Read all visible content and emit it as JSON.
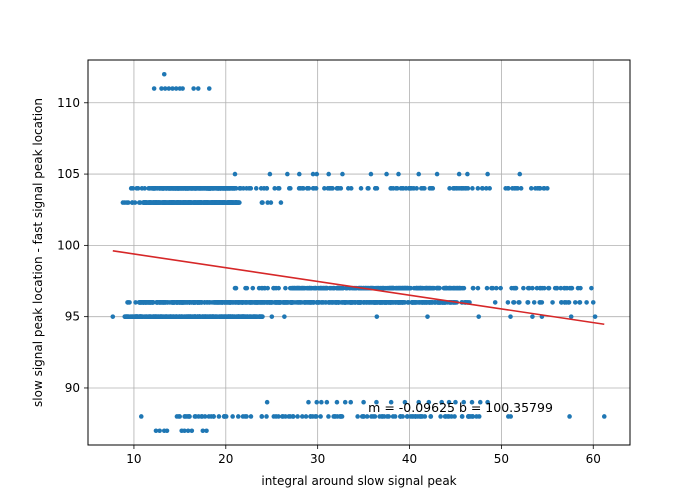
{
  "chart_data": {
    "type": "scatter",
    "xlabel": "integral around slow signal peak",
    "ylabel": "slow signal peak location - fast signal peak location",
    "xlim": [
      5,
      64
    ],
    "ylim": [
      86,
      113
    ],
    "x_ticks": [
      10,
      20,
      30,
      40,
      50,
      60
    ],
    "y_ticks": [
      90,
      95,
      100,
      105,
      110
    ],
    "grid": true,
    "point_color": "#1f77b4",
    "fit_line_color": "#d62728",
    "fit_line": {
      "slope": -0.09625,
      "intercept": 100.35799,
      "x_range": [
        7.7,
        61.2
      ]
    },
    "annotation": {
      "text": "m = -0.09625 b = 100.35799",
      "x": 35.5,
      "y": 88.3
    },
    "clusters": [
      {
        "y": 112,
        "x_points": [
          13.3
        ]
      },
      {
        "y": 111,
        "x_points": [
          12.2,
          13.0,
          13.4,
          13.8,
          14.2,
          14.6,
          15.0,
          15.3,
          16.5,
          17.0,
          18.2
        ]
      },
      {
        "y": 105,
        "x_points": [
          21.0,
          24.8,
          26.7,
          28.0,
          29.5,
          29.9,
          31.2,
          32.7,
          35.8,
          37.5,
          38.8,
          41.0,
          43.0,
          45.4,
          46.3,
          48.5,
          52.0
        ]
      },
      {
        "y": 104,
        "x_range": [
          9.7,
          55.0
        ],
        "dense_range": [
          12.0,
          21.0
        ],
        "dense_count": 260,
        "sparse_count": 150
      },
      {
        "y": 103,
        "x_range": [
          8.8,
          26.0
        ],
        "dense_range": [
          11.0,
          21.5
        ],
        "dense_count": 300,
        "sparse_count": 40
      },
      {
        "y": 97,
        "x_range": [
          21.0,
          59.8
        ],
        "dense_range": [
          27.0,
          46.0
        ],
        "dense_count": 240,
        "sparse_count": 110
      },
      {
        "y": 96,
        "x_range": [
          9.3,
          60.0
        ],
        "dense_range": [
          10.5,
          45.0
        ],
        "dense_count": 560,
        "sparse_count": 110
      },
      {
        "y": 95,
        "x_range": [
          7.7,
          60.2
        ],
        "dense_range": [
          9.0,
          24.0
        ],
        "dense_count": 420,
        "sparse_count": 12
      },
      {
        "y": 89,
        "x_points": [
          24.5,
          29.0,
          29.9,
          30.4,
          31.0,
          32.1,
          33.0,
          33.6,
          35.0,
          36.4,
          38.0,
          39.5,
          41.0,
          42.1,
          43.5,
          44.3,
          45.0,
          45.9,
          46.8,
          47.7,
          48.5
        ]
      },
      {
        "y": 88,
        "x_range": [
          10.8,
          61.2
        ],
        "dense_range": [
          14.5,
          48.0
        ],
        "dense_count": 110,
        "sparse_count": 8
      },
      {
        "y": 87,
        "x_points": [
          12.4,
          12.8,
          13.3,
          13.6,
          15.2,
          15.5,
          15.9,
          16.3,
          17.5,
          17.9
        ]
      }
    ]
  }
}
